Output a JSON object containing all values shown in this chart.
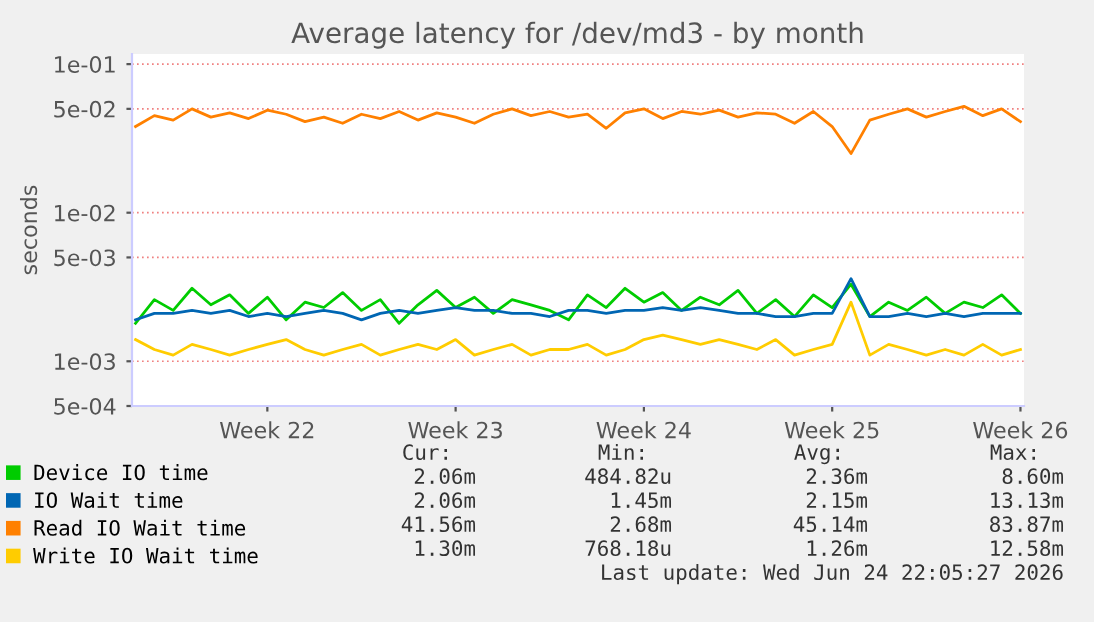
{
  "chart_data": {
    "type": "line",
    "title": "Average latency for /dev/md3 - by month",
    "ylabel": "seconds",
    "log": "y",
    "grid": "y",
    "legend": "bottom",
    "marker": "none",
    "line_style": "solid",
    "categories": [
      null,
      null,
      null,
      null,
      null,
      null,
      null,
      "Week 22",
      null,
      null,
      null,
      null,
      null,
      null,
      null,
      null,
      null,
      "Week 23",
      null,
      null,
      null,
      null,
      null,
      null,
      null,
      null,
      null,
      "Week 24",
      null,
      null,
      null,
      null,
      null,
      null,
      null,
      null,
      null,
      "Week 25",
      null,
      null,
      null,
      null,
      null,
      null,
      null,
      null,
      null,
      "Week 26"
    ],
    "ylim": [
      0.0005,
      0.117
    ],
    "yticks": [
      {
        "value": 0.0005,
        "label": "5e-04"
      },
      {
        "value": 0.001,
        "label": "1e-03"
      },
      {
        "value": 0.005,
        "label": "5e-03"
      },
      {
        "value": 0.01,
        "label": "1e-02"
      },
      {
        "value": 0.05,
        "label": "5e-02"
      },
      {
        "value": 0.1,
        "label": "1e-01"
      }
    ],
    "series": [
      {
        "name": "Device IO time",
        "color": "#00cc00",
        "values": [
          0.0018,
          0.0026,
          0.0022,
          0.0031,
          0.0024,
          0.0028,
          0.0021,
          0.0027,
          0.0019,
          0.0025,
          0.0023,
          0.0029,
          0.0022,
          0.0026,
          0.0018,
          0.0024,
          0.003,
          0.0023,
          0.0027,
          0.0021,
          0.0026,
          0.0024,
          0.0022,
          0.0019,
          0.0028,
          0.0023,
          0.0031,
          0.0025,
          0.0029,
          0.0022,
          0.0027,
          0.0024,
          0.003,
          0.0021,
          0.0026,
          0.002,
          0.0028,
          0.0023,
          0.0033,
          0.002,
          0.0025,
          0.0022,
          0.0027,
          0.0021,
          0.0025,
          0.0023,
          0.0028,
          0.0021
        ]
      },
      {
        "name": "IO Wait time",
        "color": "#0066b3",
        "values": [
          0.0019,
          0.0021,
          0.0021,
          0.0022,
          0.0021,
          0.0022,
          0.002,
          0.0021,
          0.002,
          0.0021,
          0.0022,
          0.0021,
          0.0019,
          0.0021,
          0.0022,
          0.0021,
          0.0022,
          0.0023,
          0.0022,
          0.0022,
          0.0021,
          0.0021,
          0.002,
          0.0022,
          0.0022,
          0.0021,
          0.0022,
          0.0022,
          0.0023,
          0.0022,
          0.0023,
          0.0022,
          0.0021,
          0.0021,
          0.002,
          0.002,
          0.0021,
          0.0021,
          0.0036,
          0.002,
          0.002,
          0.0021,
          0.002,
          0.0021,
          0.002,
          0.0021,
          0.0021,
          0.0021
        ]
      },
      {
        "name": "Read IO Wait time",
        "color": "#ff8000",
        "values": [
          0.038,
          0.045,
          0.042,
          0.05,
          0.044,
          0.047,
          0.043,
          0.049,
          0.046,
          0.041,
          0.044,
          0.04,
          0.046,
          0.043,
          0.048,
          0.042,
          0.047,
          0.044,
          0.04,
          0.046,
          0.05,
          0.045,
          0.048,
          0.044,
          0.046,
          0.037,
          0.047,
          0.05,
          0.043,
          0.048,
          0.046,
          0.049,
          0.044,
          0.047,
          0.046,
          0.04,
          0.048,
          0.038,
          0.025,
          0.042,
          0.046,
          0.05,
          0.044,
          0.048,
          0.052,
          0.045,
          0.05,
          0.041
        ]
      },
      {
        "name": "Write IO Wait time",
        "color": "#ffcc00",
        "values": [
          0.0014,
          0.0012,
          0.0011,
          0.0013,
          0.0012,
          0.0011,
          0.0012,
          0.0013,
          0.0014,
          0.0012,
          0.0011,
          0.0012,
          0.0013,
          0.0011,
          0.0012,
          0.0013,
          0.0012,
          0.0014,
          0.0011,
          0.0012,
          0.0013,
          0.0011,
          0.0012,
          0.0012,
          0.0013,
          0.0011,
          0.0012,
          0.0014,
          0.0015,
          0.0014,
          0.0013,
          0.0014,
          0.0013,
          0.0012,
          0.0014,
          0.0011,
          0.0012,
          0.0013,
          0.0025,
          0.0011,
          0.0013,
          0.0012,
          0.0011,
          0.0012,
          0.0011,
          0.0013,
          0.0011,
          0.0012
        ]
      }
    ],
    "annotations": [
      "Cur:",
      "Min:",
      "Avg:",
      "Max:",
      "2.06m",
      "484.82u",
      "2.36m",
      "8.60m",
      "2.06m",
      "1.45m",
      "2.15m",
      "13.13m",
      "41.56m",
      "2.68m",
      "45.14m",
      "83.87m",
      "1.30m",
      "768.18u",
      "1.26m",
      "12.58m",
      "Last update: Wed Jun 24 22:05:27 2026"
    ]
  }
}
